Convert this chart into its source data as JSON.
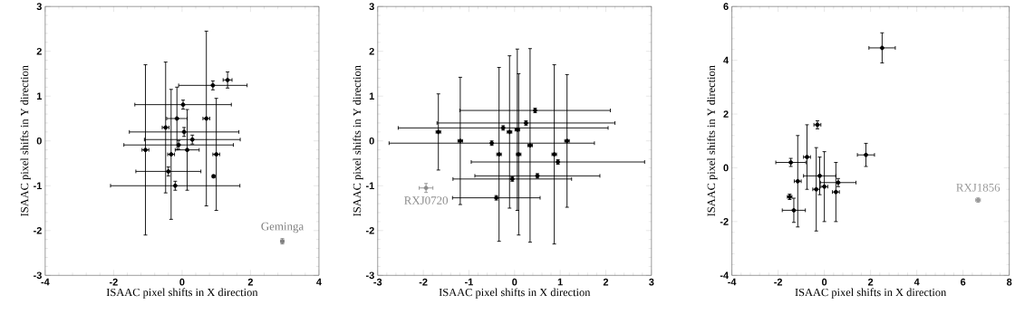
{
  "chart_data": [
    {
      "type": "scatter",
      "xlabel": "ISAAC pixel shifts in X direction",
      "ylabel": "ISAAC pixel shifts in Y direction",
      "xlim": [
        -4,
        4
      ],
      "ylim": [
        -3,
        3
      ],
      "xticks": [
        -4,
        -2,
        0,
        2,
        4
      ],
      "yticks": [
        -3,
        -2,
        -1,
        0,
        1,
        2,
        3
      ],
      "grid": false,
      "legend": "bottom right",
      "series": [
        {
          "color": "#000000",
          "x": [
            1.33,
            0.9,
            0.71,
            -1.07,
            -0.2,
            1.0,
            -0.32,
            -0.48,
            -0.1,
            0.03,
            0.06,
            0.3,
            -0.4,
            0.92,
            0.15,
            -0.15
          ],
          "values": [
            1.36,
            1.24,
            0.5,
            -0.2,
            -1.0,
            -0.3,
            -0.3,
            0.3,
            -0.09,
            0.81,
            0.2,
            0.03,
            -0.68,
            -0.79,
            -0.2,
            0.5
          ],
          "xerrors": [
            0.13,
            1.0,
            0.1,
            0.1,
            1.89,
            0.1,
            0.1,
            0.1,
            1.6,
            1.41,
            1.6,
            1.4,
            0.95,
            0.03,
            0.35,
            0.3
          ],
          "errors": [
            0.18,
            0.1,
            1.95,
            1.9,
            0.1,
            1.25,
            1.45,
            1.46,
            0.1,
            0.1,
            0.1,
            0.1,
            0.1,
            0.03,
            0.9,
            0.7
          ]
        },
        {
          "name": "Geminga",
          "color": "#808080",
          "x": [
            2.93
          ],
          "values": [
            -2.24
          ],
          "xerrors": [
            0.05
          ],
          "errors": [
            0.06
          ]
        }
      ]
    },
    {
      "type": "scatter",
      "xlabel": "ISAAC pixel shifts in X direction",
      "ylabel": "ISAAC pixel shifts in Y direction",
      "xlim": [
        -3,
        3
      ],
      "ylim": [
        -3,
        3
      ],
      "xticks": [
        -3,
        -2,
        -1,
        0,
        1,
        2,
        3
      ],
      "yticks": [
        -3,
        -2,
        -1,
        0,
        1,
        2,
        3
      ],
      "grid": false,
      "legend": "left",
      "series": [
        {
          "color": "#000000",
          "x": [
            0.95,
            -0.5,
            -0.25,
            0.25,
            0.45,
            -1.67,
            -1.19,
            0.87,
            -0.11,
            0.06,
            -0.34,
            0.34,
            1.15,
            0.09,
            0.5,
            -0.05,
            -0.4
          ],
          "values": [
            -0.47,
            -0.05,
            0.29,
            0.4,
            0.68,
            0.2,
            0.0,
            -0.3,
            0.2,
            0.25,
            -0.3,
            -0.1,
            0.0,
            -0.3,
            -0.78,
            -0.85,
            -1.27
          ],
          "xerrors": [
            1.9,
            2.25,
            2.3,
            1.95,
            1.65,
            0.05,
            0.05,
            0.05,
            0.05,
            0.05,
            0.05,
            0.05,
            0.05,
            0.05,
            1.37,
            1.3,
            0.96
          ],
          "errors": [
            0.05,
            0.05,
            0.05,
            0.05,
            0.05,
            0.85,
            1.42,
            2.0,
            1.7,
            1.8,
            1.94,
            2.16,
            1.48,
            1.8,
            0.05,
            0.05,
            0.05
          ]
        },
        {
          "name": "RXJ0720",
          "color": "#8c8c8c",
          "x": [
            -1.94
          ],
          "values": [
            -1.05
          ],
          "xerrors": [
            0.15
          ],
          "errors": [
            0.1
          ]
        }
      ]
    },
    {
      "type": "scatter",
      "xlabel": "ISAAC pixel shifts in X direction",
      "ylabel": "ISAAC pixel shifts in Y direction",
      "xlim": [
        -4,
        8
      ],
      "ylim": [
        -4,
        6
      ],
      "xticks": [
        -4,
        -2,
        0,
        2,
        4,
        6,
        8
      ],
      "yticks": [
        -4,
        -2,
        0,
        2,
        4,
        6
      ],
      "grid": false,
      "legend": "right",
      "series": [
        {
          "color": "#000000",
          "x": [
            2.5,
            1.8,
            -0.3,
            -1.5,
            -1.32,
            -0.35,
            -1.45,
            -1.15,
            -0.75,
            0.6,
            0.0,
            0.5,
            -0.2
          ],
          "values": [
            4.46,
            0.48,
            1.6,
            -1.08,
            -1.58,
            -0.8,
            0.2,
            -0.5,
            0.4,
            -0.55,
            -0.7,
            -0.9,
            -0.3
          ],
          "xerrors": [
            0.57,
            0.37,
            0.15,
            0.1,
            0.5,
            0.15,
            0.65,
            0.15,
            0.15,
            0.77,
            0.15,
            0.15,
            0.7
          ],
          "errors": [
            0.56,
            0.43,
            0.15,
            0.1,
            0.45,
            1.55,
            0.15,
            1.7,
            1.2,
            0.15,
            1.3,
            1.1,
            0.7
          ]
        },
        {
          "name": "RXJ1856",
          "color": "#999999",
          "x": [
            6.65
          ],
          "values": [
            -1.2
          ],
          "xerrors": [
            0.1
          ],
          "errors": [
            0.08
          ]
        }
      ]
    }
  ]
}
